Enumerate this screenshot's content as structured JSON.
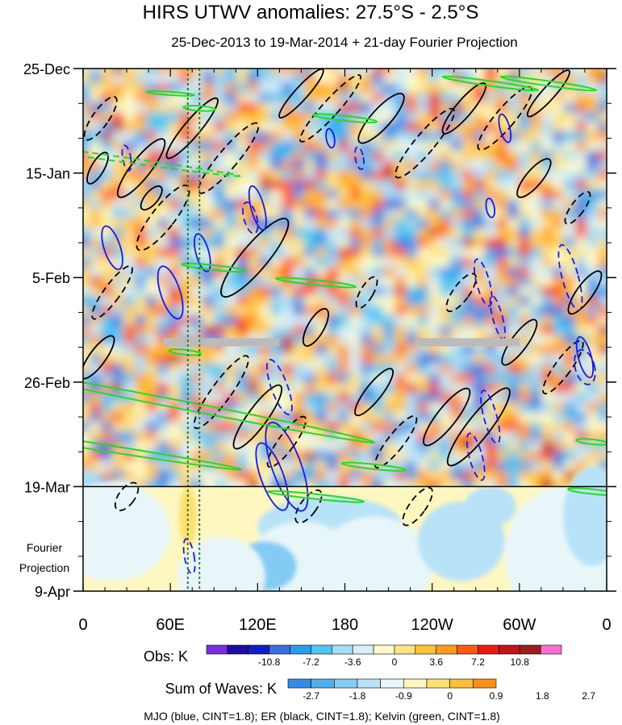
{
  "title": "HIRS UTWV anomalies: 27.5°S - 2.5°S",
  "subtitle": "25-Dec-2013 to 19-Mar-2014 + 21-day Fourier Projection",
  "fourier_label_line1": "Fourier",
  "fourier_label_line2": "Projection",
  "footer": "MJO (blue, CINT=1.8); ER (black, CINT=1.8); Kelvin (green, CINT=1.8)",
  "colors": {
    "mjo": "#1a1adc",
    "er": "#000000",
    "kelvin": "#22dd22",
    "divider": "#000000",
    "reference_line": "#2f7f2f",
    "gray_band": "#bbbbbb"
  },
  "chart_data": {
    "type": "heatmap",
    "plot": "Hovmoller (longitude vs time)",
    "xlabel": "",
    "ylabel": "",
    "x_ticks": [
      {
        "lon": 0,
        "label": "0"
      },
      {
        "lon": 60,
        "label": "60E"
      },
      {
        "lon": 120,
        "label": "120E"
      },
      {
        "lon": 180,
        "label": "180"
      },
      {
        "lon": 240,
        "label": "120W"
      },
      {
        "lon": 300,
        "label": "60W"
      },
      {
        "lon": 360,
        "label": "0"
      }
    ],
    "xlim": [
      0,
      360
    ],
    "y_ticks": [
      {
        "day": 0,
        "label": "25-Dec"
      },
      {
        "day": 21,
        "label": "15-Jan"
      },
      {
        "day": 42,
        "label": "5-Feb"
      },
      {
        "day": 63,
        "label": "26-Feb"
      },
      {
        "day": 84,
        "label": "19-Mar"
      },
      {
        "day": 105,
        "label": "9-Apr"
      }
    ],
    "ylim_days": [
      0,
      105
    ],
    "observation_end_day": 84,
    "reference_lons": [
      72,
      80
    ],
    "gray_band_day": 55,
    "gray_band_segments": [
      [
        55,
        135
      ],
      [
        230,
        300
      ]
    ],
    "obs_legend": {
      "label": "Obs: K",
      "tick_labels": [
        "-10.8",
        "-7.2",
        "-3.6",
        "0",
        "3.6",
        "7.2",
        "10.8"
      ],
      "colors": [
        "#7b2ee0",
        "#1d0ba8",
        "#0e1fc7",
        "#3a6fdf",
        "#2b9bec",
        "#4fc6f3",
        "#a6dcf6",
        "#d6f0f8",
        "#fffbc8",
        "#ffe382",
        "#ffc33a",
        "#ff9a1a",
        "#ff5a10",
        "#ee1a12",
        "#c2121a",
        "#9b1d1d",
        "#ff6ed0"
      ]
    },
    "waves_legend": {
      "label": "Sum of Waves: K",
      "tick_labels": [
        "-2.7",
        "-1.8",
        "-0.9",
        "0",
        "0.9",
        "1.8",
        "2.7"
      ],
      "colors": [
        "#2e8ee8",
        "#4fb0f0",
        "#82ccf4",
        "#b8e2f8",
        "#e8f6fa",
        "#fff7c0",
        "#ffdf6e",
        "#ffbf36",
        "#ff8f16"
      ]
    },
    "contours": {
      "MJO": {
        "color": "blue",
        "cint": 1.8
      },
      "ER": {
        "color": "black",
        "cint": 1.8
      },
      "Kelvin": {
        "color": "green",
        "cint": 1.8
      }
    }
  }
}
